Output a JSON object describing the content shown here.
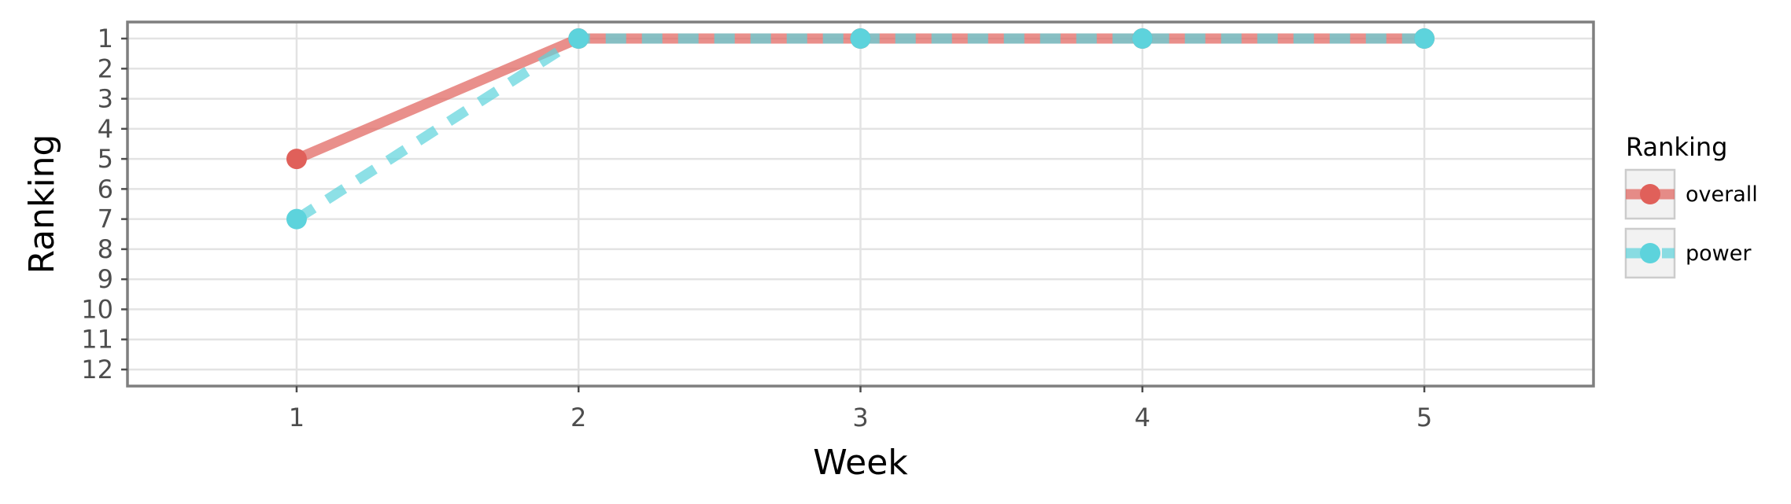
{
  "chart_data": {
    "type": "line",
    "xlabel": "Week",
    "ylabel": "Ranking",
    "x": [
      1,
      2,
      3,
      4,
      5
    ],
    "xlim": [
      0.4,
      5.6
    ],
    "ylim": [
      12.55,
      0.45
    ],
    "y_reversed": true,
    "x_ticks": [
      "1",
      "2",
      "3",
      "4",
      "5"
    ],
    "y_ticks": [
      "1",
      "2",
      "3",
      "4",
      "5",
      "6",
      "7",
      "8",
      "9",
      "10",
      "11",
      "12"
    ],
    "grid": true,
    "legend": {
      "title": "Ranking",
      "placement": "right"
    },
    "series": [
      {
        "name": "overall",
        "values": [
          5,
          1,
          1,
          1,
          1
        ],
        "color": "#e0605a",
        "line_style": "solid"
      },
      {
        "name": "power",
        "values": [
          7,
          1,
          1,
          1,
          1
        ],
        "color": "#5dd3dc",
        "line_style": "dashed"
      }
    ]
  }
}
